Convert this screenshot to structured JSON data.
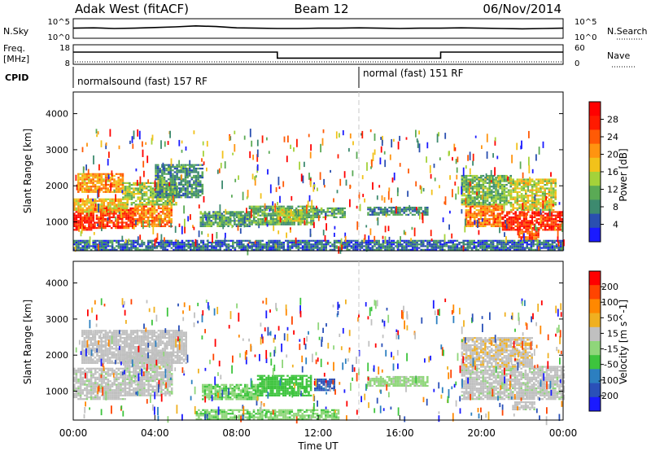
{
  "header": {
    "site": "Adak West (fitACF)",
    "beam": "Beam 12",
    "date": "06/Nov/2014"
  },
  "colors": {
    "power_scale": [
      "#1a1aff",
      "#2a4fb0",
      "#3d8a6f",
      "#5aaa55",
      "#a4d23a",
      "#f2c21a",
      "#ff9410",
      "#ff5a05",
      "#ff1a00",
      "#ff0000"
    ],
    "velocity_scale": [
      "#1a1aff",
      "#2a50b8",
      "#2c7fc0",
      "#3dc43d",
      "#8fd67a",
      "#c0c0c0",
      "#f0b020",
      "#ff8800",
      "#ff4400",
      "#ff0000"
    ],
    "gray_scatter": "#c0c0c0"
  },
  "chart_data": [
    {
      "type": "line",
      "panel": "noise",
      "left_label": "N.Sky",
      "right_label": "N.Search",
      "left_ticks": [
        "10^5",
        "10^0"
      ],
      "right_ticks": [
        "10^5",
        "10^0"
      ],
      "x": [
        0,
        1,
        2,
        3,
        4,
        5,
        6,
        7,
        8,
        9,
        10,
        11,
        12,
        13,
        14,
        15,
        16,
        17,
        18,
        19,
        20,
        21,
        22,
        23,
        24
      ],
      "series": [
        {
          "values": [
            2.6,
            2.7,
            2.5,
            2.6,
            2.8,
            3.0,
            3.3,
            3.1,
            2.7,
            2.6,
            2.5,
            2.5,
            2.6,
            2.6,
            2.7,
            2.6,
            2.5,
            2.6,
            2.6,
            2.7,
            2.6,
            2.5,
            2.4,
            2.5,
            2.6
          ]
        }
      ]
    },
    {
      "type": "line",
      "panel": "frequency",
      "left_label": "Freq.",
      "left_unit": "[MHz]",
      "right_label": "Nave",
      "left_ticks": [
        "18",
        "8"
      ],
      "right_ticks": [
        "60",
        "0"
      ],
      "x": [
        0,
        10,
        10,
        18,
        18,
        24
      ],
      "series": [
        {
          "values": [
            14.5,
            14.5,
            10.8,
            10.8,
            14.5,
            14.5
          ]
        }
      ]
    },
    {
      "type": "table",
      "panel": "cpid",
      "label": "CPID",
      "segments": [
        {
          "start": 0,
          "end": 14,
          "text": "normalsound (fast) 157 RF"
        },
        {
          "start": 14,
          "end": 24,
          "text": "normal (fast) 151 RF"
        }
      ]
    },
    {
      "type": "heatmap",
      "panel": "power",
      "ylabel": "Slant Range [km]",
      "yticks": [
        1000,
        2000,
        3000,
        4000
      ],
      "ylim": [
        200,
        4600
      ],
      "xlim": [
        0,
        24
      ],
      "colorbar": {
        "label": "Power [dB]",
        "ticks": [
          "28",
          "24",
          "20",
          "16",
          "12",
          "8",
          "4"
        ],
        "range": [
          0,
          32
        ]
      },
      "regions": [
        {
          "t0": 0.0,
          "t1": 1.0,
          "r0": 760,
          "r1": 1300,
          "value": 28
        },
        {
          "t0": 1.0,
          "t1": 3.0,
          "r0": 820,
          "r1": 1400,
          "value": 26
        },
        {
          "t0": 3.0,
          "t1": 4.8,
          "r0": 900,
          "r1": 1500,
          "value": 22
        },
        {
          "t0": 0.0,
          "t1": 2.6,
          "r0": 1300,
          "r1": 1650,
          "value": 18
        },
        {
          "t0": 0.2,
          "t1": 2.4,
          "r0": 1850,
          "r1": 2350,
          "value": 20
        },
        {
          "t0": 2.4,
          "t1": 5.0,
          "r0": 1500,
          "r1": 2100,
          "value": 14
        },
        {
          "t0": 4.0,
          "t1": 6.3,
          "r0": 1700,
          "r1": 2600,
          "value": 9
        },
        {
          "t0": 6.2,
          "t1": 8.6,
          "r0": 900,
          "r1": 1300,
          "value": 10
        },
        {
          "t0": 8.6,
          "t1": 11.8,
          "r0": 950,
          "r1": 1450,
          "value": 11
        },
        {
          "t0": 10.0,
          "t1": 11.2,
          "r0": 1050,
          "r1": 1350,
          "value": 16
        },
        {
          "t0": 11.8,
          "t1": 13.3,
          "r0": 1150,
          "r1": 1400,
          "value": 10
        },
        {
          "t0": 14.4,
          "t1": 17.4,
          "r0": 1200,
          "r1": 1420,
          "value": 8
        },
        {
          "t0": 19.2,
          "t1": 21.0,
          "r0": 900,
          "r1": 1500,
          "value": 22
        },
        {
          "t0": 21.0,
          "t1": 24.0,
          "r0": 800,
          "r1": 1300,
          "value": 27
        },
        {
          "t0": 19.0,
          "t1": 21.4,
          "r0": 1500,
          "r1": 2300,
          "value": 12
        },
        {
          "t0": 21.4,
          "t1": 23.6,
          "r0": 1350,
          "r1": 2200,
          "value": 16
        },
        {
          "t0": 21.8,
          "t1": 22.8,
          "r0": 500,
          "r1": 750,
          "value": 24
        },
        {
          "t0": 0.0,
          "t1": 24.0,
          "r0": 250,
          "r1": 500,
          "value": 6
        }
      ]
    },
    {
      "type": "heatmap",
      "panel": "velocity",
      "ylabel": "Slant Range [km]",
      "yticks": [
        1000,
        2000,
        3000,
        4000
      ],
      "ylim": [
        200,
        4600
      ],
      "xlim": [
        0,
        24
      ],
      "xlabel": "Time UT",
      "xticks": [
        "00:00",
        "04:00",
        "08:00",
        "12:00",
        "16:00",
        "20:00",
        "00:00"
      ],
      "colorbar": {
        "label": "Velocity [m s^-1]",
        "ticks": [
          "200",
          "100",
          "50",
          "15",
          "-15",
          "-50",
          "-100",
          "-200"
        ],
        "range": [
          -250,
          250
        ]
      },
      "regions": [
        {
          "t0": 0.0,
          "t1": 2.5,
          "r0": 760,
          "r1": 1650,
          "value": 0
        },
        {
          "t0": 2.5,
          "t1": 4.8,
          "r0": 900,
          "r1": 2100,
          "value": 0
        },
        {
          "t0": 0.4,
          "t1": 5.5,
          "r0": 1800,
          "r1": 2700,
          "value": 30
        },
        {
          "t0": 6.3,
          "t1": 9.0,
          "r0": 800,
          "r1": 1200,
          "value": -45
        },
        {
          "t0": 9.0,
          "t1": 11.6,
          "r0": 900,
          "r1": 1450,
          "value": -70
        },
        {
          "t0": 11.8,
          "t1": 12.8,
          "r0": 1050,
          "r1": 1350,
          "value": -160
        },
        {
          "t0": 14.4,
          "t1": 17.4,
          "r0": 1150,
          "r1": 1420,
          "value": -30
        },
        {
          "t0": 19.0,
          "t1": 24.0,
          "r0": 800,
          "r1": 1700,
          "value": 0
        },
        {
          "t0": 19.0,
          "t1": 22.5,
          "r0": 1700,
          "r1": 2500,
          "value": 40
        },
        {
          "t0": 21.5,
          "t1": 22.6,
          "r0": 500,
          "r1": 720,
          "value": 0
        },
        {
          "t0": 6.0,
          "t1": 13.0,
          "r0": 250,
          "r1": 500,
          "value": -40
        }
      ]
    }
  ]
}
